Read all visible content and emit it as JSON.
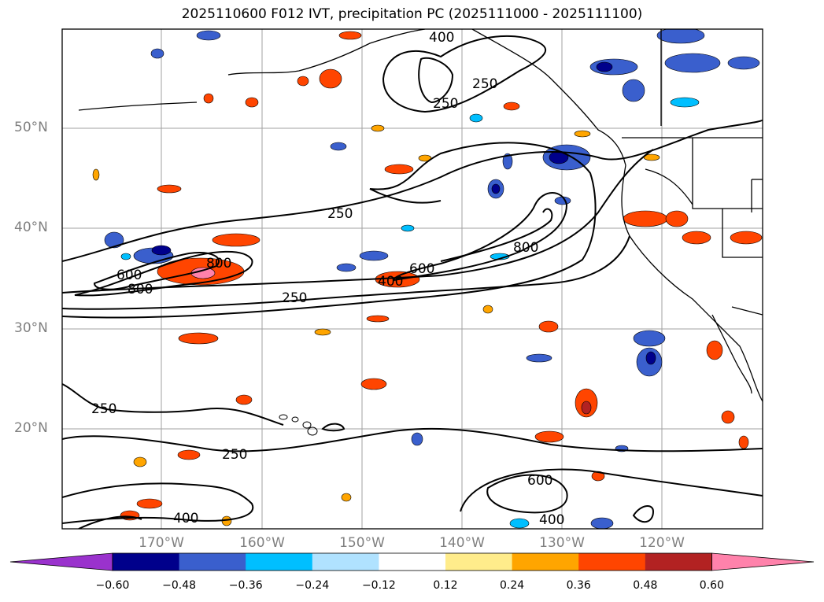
{
  "title": "2025110600 F012 IVT, precipitation PC (2025111000 - 2025111100)",
  "lat_labels": [
    "50°N",
    "40°N",
    "30°N",
    "20°N"
  ],
  "lon_labels": [
    "170°W",
    "160°W",
    "150°W",
    "140°W",
    "130°W",
    "120°W"
  ],
  "contour_labels": [
    "400",
    "250",
    "250",
    "250",
    "800",
    "600",
    "800",
    "800",
    "600",
    "400",
    "250",
    "250",
    "250",
    "600",
    "400",
    "400"
  ],
  "colorbar": {
    "ticks": [
      "−0.60",
      "−0.48",
      "−0.36",
      "−0.24",
      "−0.12",
      "0.12",
      "0.24",
      "0.36",
      "0.48",
      "0.60"
    ],
    "colors": [
      "#9a32cd",
      "#00008b",
      "#3a5fcd",
      "#00bfff",
      "#b0e2ff",
      "#ffffff",
      "#ffec8b",
      "#ffa500",
      "#ff4500",
      "#b22222",
      "#ff82ab"
    ]
  },
  "colors": {
    "contour": "#000000",
    "coast": "#000000",
    "grid": "#a0a0a0",
    "label_gray": "#808080"
  }
}
